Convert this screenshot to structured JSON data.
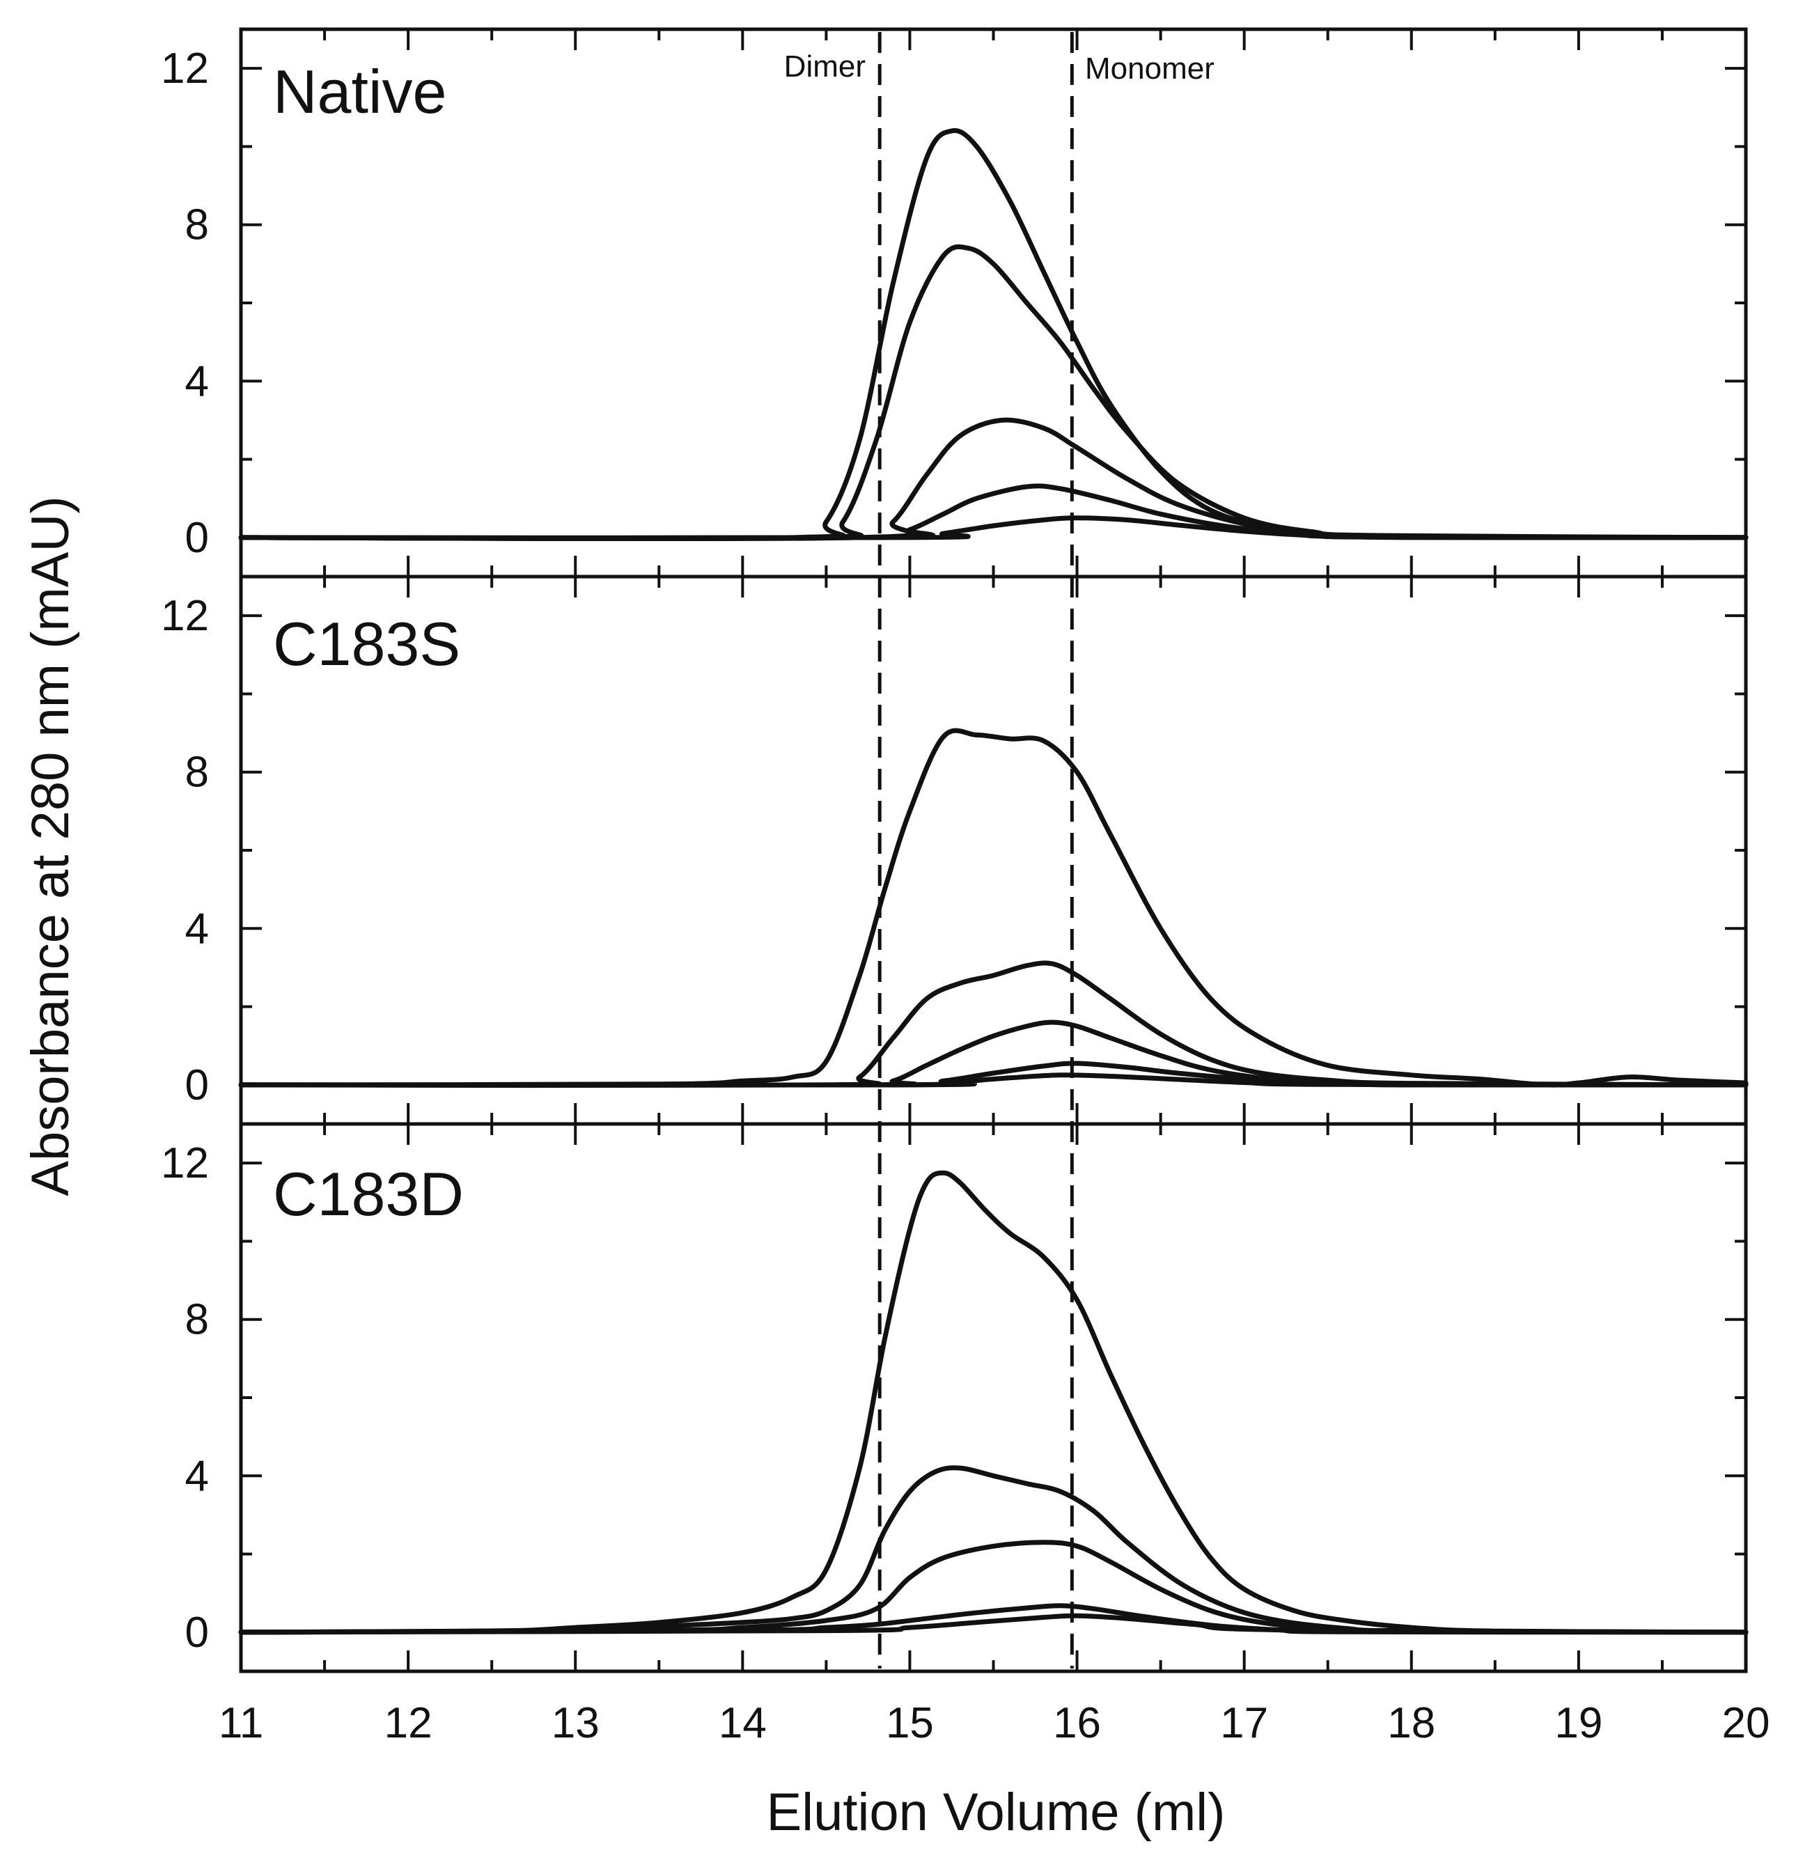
{
  "chart_data": {
    "type": "line",
    "xlabel": "Elution Volume (ml)",
    "ylabel": "Absorbance at 280 nm (mAU)",
    "xlim": [
      11,
      20
    ],
    "ylim": [
      -1,
      13
    ],
    "x_ticks": [
      11,
      12,
      13,
      14,
      15,
      16,
      17,
      18,
      19,
      20
    ],
    "x_tick_labels": [
      "11",
      "12",
      "13",
      "14",
      "15",
      "16",
      "17",
      "18",
      "19",
      "20"
    ],
    "y_ticks": [
      0,
      4,
      8,
      12
    ],
    "y_tick_labels": [
      "0",
      "4",
      "8",
      "12"
    ],
    "markers": [
      {
        "label": "Dimer",
        "x": 14.82
      },
      {
        "label": "Monomer",
        "x": 15.97
      }
    ],
    "panels": [
      {
        "label": "Native",
        "series": [
          {
            "name": "trace 1",
            "x": [
              11,
              14.3,
              14.5,
              14.7,
              14.9,
              15.1,
              15.25,
              15.4,
              15.6,
              15.8,
              16.0,
              16.2,
              16.5,
              16.8,
              17.2,
              17.6,
              18,
              20
            ],
            "y": [
              0,
              0,
              0.4,
              2.5,
              6.5,
              9.7,
              10.4,
              10.0,
              8.6,
              6.8,
              5.0,
              3.4,
              1.7,
              0.7,
              0.2,
              0.05,
              0,
              0
            ]
          },
          {
            "name": "trace 2",
            "x": [
              11,
              14.4,
              14.6,
              14.8,
              15.0,
              15.2,
              15.35,
              15.5,
              15.7,
              15.9,
              16.1,
              16.3,
              16.6,
              17.0,
              17.4,
              17.8,
              20
            ],
            "y": [
              0,
              0,
              0.4,
              2.5,
              5.5,
              7.2,
              7.4,
              7.0,
              6.0,
              5.0,
              3.8,
              2.7,
              1.4,
              0.5,
              0.15,
              0.05,
              0
            ]
          },
          {
            "name": "trace 3",
            "x": [
              11,
              14.7,
              14.9,
              15.1,
              15.3,
              15.55,
              15.8,
              16.0,
              16.3,
              16.6,
              17.0,
              17.4,
              17.8,
              20
            ],
            "y": [
              0,
              0,
              0.4,
              1.6,
              2.6,
              3.0,
              2.8,
              2.3,
              1.5,
              0.85,
              0.35,
              0.12,
              0.03,
              0
            ]
          },
          {
            "name": "trace 4",
            "x": [
              11,
              14.8,
              15.0,
              15.2,
              15.4,
              15.7,
              15.9,
              16.2,
              16.5,
              16.9,
              17.3,
              17.7,
              20
            ],
            "y": [
              0,
              0,
              0.2,
              0.6,
              1.0,
              1.3,
              1.25,
              0.95,
              0.6,
              0.28,
              0.1,
              0.02,
              0
            ]
          },
          {
            "name": "trace 5",
            "x": [
              11,
              15.0,
              15.2,
              15.5,
              15.8,
              16.0,
              16.3,
              16.6,
              17.0,
              17.4,
              17.8,
              20
            ],
            "y": [
              0,
              0,
              0.1,
              0.3,
              0.45,
              0.5,
              0.45,
              0.32,
              0.16,
              0.05,
              0.01,
              0
            ]
          }
        ]
      },
      {
        "label": "C183S",
        "series": [
          {
            "name": "trace 1",
            "x": [
              11,
              13.5,
              14.0,
              14.3,
              14.5,
              14.7,
              14.85,
              15.0,
              15.2,
              15.4,
              15.6,
              15.8,
              16.0,
              16.2,
              16.5,
              16.8,
              17.1,
              17.5,
              18.0,
              18.4,
              18.8,
              19.0,
              19.3,
              19.6,
              20
            ],
            "y": [
              0,
              0.02,
              0.1,
              0.2,
              0.6,
              2.8,
              5.0,
              7.0,
              8.9,
              8.95,
              8.85,
              8.8,
              8.0,
              6.4,
              4.0,
              2.2,
              1.2,
              0.5,
              0.25,
              0.15,
              0.0,
              0.05,
              0.2,
              0.12,
              0.05
            ]
          },
          {
            "name": "trace 2",
            "x": [
              11,
              14.5,
              14.7,
              14.9,
              15.1,
              15.3,
              15.5,
              15.7,
              15.85,
              16.0,
              16.2,
              16.5,
              16.8,
              17.1,
              17.5,
              18.0,
              20
            ],
            "y": [
              0,
              0,
              0.2,
              1.2,
              2.2,
              2.6,
              2.8,
              3.05,
              3.1,
              2.8,
              2.2,
              1.3,
              0.65,
              0.3,
              0.12,
              0.04,
              0
            ]
          },
          {
            "name": "trace 3",
            "x": [
              11,
              14.7,
              14.9,
              15.1,
              15.3,
              15.5,
              15.7,
              15.85,
              16.0,
              16.2,
              16.5,
              16.8,
              17.2,
              17.6,
              18,
              20
            ],
            "y": [
              0,
              0,
              0.1,
              0.5,
              0.9,
              1.25,
              1.5,
              1.6,
              1.5,
              1.2,
              0.75,
              0.38,
              0.13,
              0.04,
              0,
              0
            ]
          },
          {
            "name": "trace 4",
            "x": [
              11,
              14.9,
              15.2,
              15.5,
              15.8,
              16.0,
              16.3,
              16.6,
              17.0,
              17.4,
              18,
              20
            ],
            "y": [
              0,
              0,
              0.1,
              0.3,
              0.48,
              0.55,
              0.45,
              0.3,
              0.15,
              0.05,
              0,
              0
            ]
          },
          {
            "name": "trace 5",
            "x": [
              11,
              15.0,
              15.3,
              15.6,
              15.9,
              16.2,
              16.6,
              17.0,
              17.5,
              20
            ],
            "y": [
              0,
              0,
              0.08,
              0.18,
              0.25,
              0.22,
              0.14,
              0.06,
              0.01,
              0
            ]
          }
        ]
      },
      {
        "label": "C183D",
        "series": [
          {
            "name": "trace 1",
            "x": [
              11,
              12.5,
              13.0,
              13.5,
              14.0,
              14.3,
              14.5,
              14.7,
              14.85,
              15.0,
              15.1,
              15.2,
              15.3,
              15.45,
              15.6,
              15.8,
              16.0,
              16.2,
              16.4,
              16.6,
              16.8,
              17.0,
              17.3,
              17.6,
              18.0,
              18.5,
              20
            ],
            "y": [
              0,
              0.03,
              0.12,
              0.25,
              0.5,
              0.9,
              1.6,
              4.2,
              7.5,
              10.3,
              11.5,
              11.75,
              11.5,
              10.8,
              10.2,
              9.6,
              8.5,
              6.6,
              4.8,
              3.2,
              1.9,
              1.1,
              0.55,
              0.3,
              0.12,
              0.03,
              0
            ]
          },
          {
            "name": "trace 2",
            "x": [
              11,
              13.0,
              13.5,
              14.0,
              14.3,
              14.5,
              14.7,
              14.85,
              15.0,
              15.15,
              15.3,
              15.5,
              15.7,
              15.9,
              16.1,
              16.3,
              16.6,
              16.9,
              17.2,
              17.6,
              18.0,
              20
            ],
            "y": [
              0,
              0.05,
              0.15,
              0.25,
              0.35,
              0.55,
              1.2,
              2.6,
              3.6,
              4.1,
              4.2,
              4.0,
              3.8,
              3.6,
              3.1,
              2.3,
              1.3,
              0.65,
              0.3,
              0.1,
              0.03,
              0
            ]
          },
          {
            "name": "trace 3",
            "x": [
              11,
              13.5,
              14.0,
              14.5,
              14.8,
              15.0,
              15.2,
              15.5,
              15.8,
              16.0,
              16.2,
              16.5,
              16.8,
              17.1,
              17.5,
              18.0,
              20
            ],
            "y": [
              0,
              0.05,
              0.12,
              0.3,
              0.6,
              1.4,
              1.9,
              2.2,
              2.3,
              2.2,
              1.8,
              1.1,
              0.55,
              0.25,
              0.08,
              0.02,
              0
            ]
          },
          {
            "name": "trace 4",
            "x": [
              11,
              14.0,
              14.5,
              14.8,
              15.1,
              15.4,
              15.7,
              15.9,
              16.1,
              16.4,
              16.8,
              17.2,
              17.6,
              20
            ],
            "y": [
              0,
              0.05,
              0.12,
              0.2,
              0.35,
              0.5,
              0.62,
              0.68,
              0.6,
              0.4,
              0.18,
              0.06,
              0.01,
              0
            ]
          },
          {
            "name": "trace 5",
            "x": [
              11,
              14.5,
              15.0,
              15.4,
              15.8,
              16.0,
              16.3,
              16.7,
              17.2,
              20
            ],
            "y": [
              0,
              0.04,
              0.12,
              0.25,
              0.38,
              0.42,
              0.35,
              0.2,
              0.06,
              0
            ]
          }
        ]
      }
    ]
  }
}
